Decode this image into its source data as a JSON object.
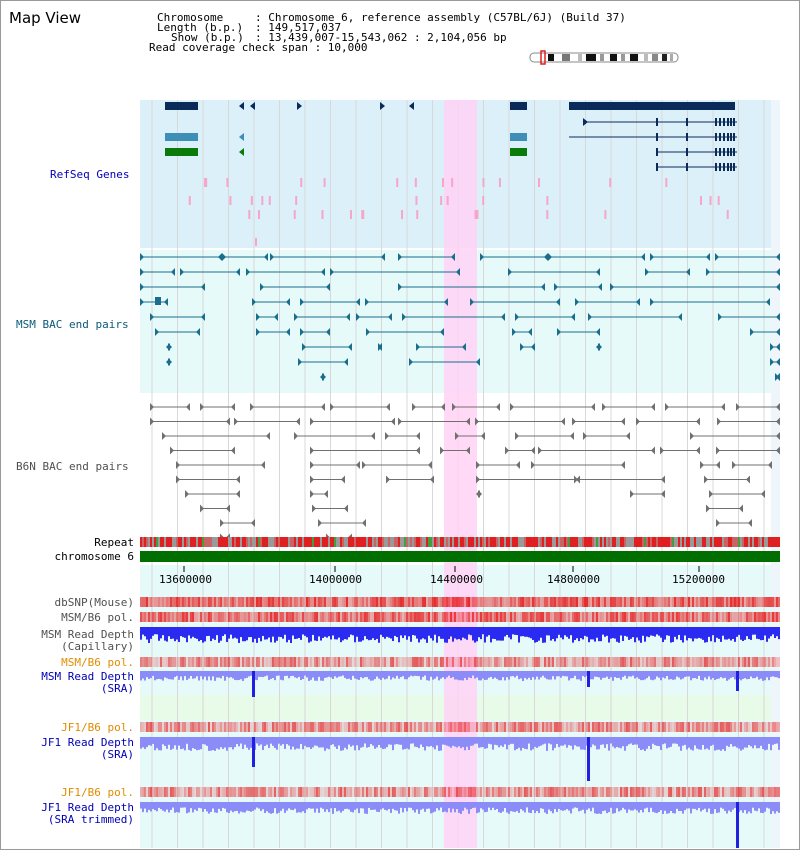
{
  "header": {
    "title": "Map View",
    "chromosome_key": "Chromosome",
    "chromosome_value": ": Chromosome 6, reference assembly (C57BL/6J) (Build 37)",
    "length_key": "Length (b.p.)",
    "length_value": ": 149,517,037",
    "show_key": "Show (b.p.)",
    "show_value": ": 13,439,007-15,543,062 : 2,104,056 bp",
    "coverage_line": "Read coverage check span : 10,000"
  },
  "tracks": {
    "refseq": "RefSeq Genes",
    "msm_bac": "MSM BAC end pairs",
    "b6n_bac": "B6N BAC end pairs",
    "repeat": "Repeat",
    "chromosome": "chromosome 6",
    "dbsnp": "dbSNP(Mouse)",
    "msm_b6_pol_1": "MSM/B6 pol.",
    "msm_read_depth_cap_1": "MSM Read Depth",
    "msm_read_depth_cap_2": "(Capillary)",
    "msm_b6_pol_2": "MSM/B6 pol.",
    "msm_read_depth_sra_1": "MSM Read Depth",
    "msm_read_depth_sra_2": "(SRA)",
    "jf1_b6_pol_1": "JF1/B6 pol.",
    "jf1_read_depth_sra_1": "JF1 Read Depth",
    "jf1_read_depth_sra_2": "(SRA)",
    "jf1_b6_pol_2": "JF1/B6 pol.",
    "jf1_read_depth_trim_1": "JF1 Read Depth",
    "jf1_read_depth_trim_2": "(SRA trimmed)"
  },
  "axis": {
    "ticks": [
      "13600000",
      "14000000",
      "14400000",
      "14800000",
      "15200000"
    ]
  },
  "colors": {
    "refseq_bg": "#dcf0fa",
    "msm_bg": "#e6fafa",
    "b6n_bg": "#ffffff",
    "highlight": "#ffd2f5",
    "gene_navy": "#0a2a5a",
    "gene_teal": "#3d8fb8",
    "gene_green": "#0a7a0a",
    "bac_msm": "#1a6d8c",
    "bac_b6n": "#707070",
    "repeat_red": "#e02020",
    "chromosome_green": "#006e00",
    "depth_blue": "#2020e0",
    "depth_light": "#8c8cf8",
    "label_blue": "#0000b4",
    "label_teal": "#0a5a7a",
    "label_orange": "#e08c00",
    "label_gray": "#505050"
  }
}
